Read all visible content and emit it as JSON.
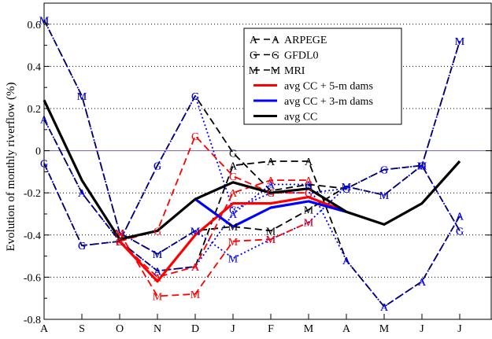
{
  "chart_data": {
    "type": "line",
    "title": "",
    "xlabel": "",
    "ylabel": "Evolution of monthly riverflow (%)",
    "categories": [
      "A",
      "S",
      "O",
      "N",
      "D",
      "J",
      "F",
      "M",
      "A",
      "M",
      "J",
      "J"
    ],
    "ylim": [
      -0.8,
      0.7
    ],
    "yticks": [
      -0.8,
      -0.6,
      -0.4,
      -0.2,
      0,
      0.2,
      0.4,
      0.6
    ],
    "ytick_labels": [
      "-0.8",
      "-0.6",
      "-0.4",
      "-0.2",
      "0",
      "0.2",
      "0.4",
      "0.6"
    ],
    "grid": "dotted-y",
    "zero_line_color": "#7a5ea8",
    "legend_position": "top-center",
    "legend": [
      {
        "label": "ARPEGE",
        "symbol": "A",
        "color": "#000000",
        "style": "dashed"
      },
      {
        "label": "GFDL0",
        "symbol": "G",
        "color": "#000000",
        "style": "dashed"
      },
      {
        "label": "MRI",
        "symbol": "M",
        "color": "#000000",
        "style": "dashed"
      },
      {
        "label": "avg CC + 5-m dams",
        "color": "#ff0000",
        "style": "solid"
      },
      {
        "label": "avg CC + 3-m dams",
        "color": "#0000ff",
        "style": "solid"
      },
      {
        "label": "avg CC",
        "color": "#000000",
        "style": "solid"
      }
    ],
    "series": [
      {
        "symbol": "A",
        "color": "#000000",
        "style": "dashed",
        "values": [
          0.15,
          -0.2,
          -0.43,
          -0.57,
          -0.55,
          -0.07,
          -0.05,
          -0.05,
          -0.52,
          -0.74,
          -0.62,
          -0.31
        ]
      },
      {
        "symbol": "G",
        "color": "#000000",
        "style": "dashed",
        "values": [
          -0.06,
          -0.45,
          -0.43,
          -0.07,
          0.26,
          -0.01,
          -0.19,
          -0.16,
          -0.18,
          -0.09,
          -0.07,
          -0.38
        ]
      },
      {
        "symbol": "M",
        "color": "#000000",
        "style": "dashed",
        "values": [
          0.62,
          0.26,
          -0.39,
          -0.49,
          -0.38,
          -0.36,
          -0.38,
          -0.28,
          -0.17,
          -0.21,
          -0.07,
          0.52
        ]
      },
      {
        "symbol": "A",
        "color": "#0000ff",
        "style": "dotted",
        "values": [
          0.15,
          -0.2,
          -0.43,
          -0.57,
          -0.55,
          -0.3,
          -0.16,
          -0.16,
          -0.52,
          -0.74,
          -0.62,
          -0.31
        ]
      },
      {
        "symbol": "G",
        "color": "#0000ff",
        "style": "dotted",
        "values": [
          -0.06,
          -0.45,
          -0.43,
          -0.07,
          0.26,
          -0.28,
          -0.2,
          -0.2,
          -0.18,
          -0.09,
          -0.07,
          -0.38
        ]
      },
      {
        "symbol": "M",
        "color": "#0000ff",
        "style": "dotted",
        "values": [
          0.62,
          0.26,
          -0.39,
          -0.49,
          -0.38,
          -0.51,
          -0.42,
          -0.34,
          -0.17,
          -0.21,
          -0.07,
          0.52
        ]
      },
      {
        "symbol": "A",
        "color": "#ff0000",
        "style": "dashed",
        "start": 2,
        "end": 7,
        "values": [
          null,
          null,
          -0.43,
          -0.6,
          -0.55,
          -0.2,
          -0.14,
          -0.14,
          null,
          null,
          null,
          null
        ]
      },
      {
        "symbol": "G",
        "color": "#ff0000",
        "style": "dashed",
        "start": 2,
        "end": 7,
        "values": [
          null,
          null,
          -0.43,
          -0.38,
          0.07,
          -0.12,
          -0.2,
          -0.2,
          null,
          null,
          null,
          null
        ]
      },
      {
        "symbol": "M",
        "color": "#ff0000",
        "style": "dashed",
        "start": 2,
        "end": 7,
        "values": [
          null,
          null,
          -0.39,
          -0.69,
          -0.68,
          -0.43,
          -0.42,
          -0.34,
          null,
          null,
          null,
          null
        ]
      },
      {
        "name": "avg CC + 5-m dams",
        "color": "#ff0000",
        "style": "solid",
        "width": 3.2,
        "start": 2,
        "end": 8,
        "values": [
          null,
          null,
          -0.43,
          -0.62,
          -0.4,
          -0.25,
          -0.25,
          -0.22,
          -0.29,
          null,
          null,
          null
        ]
      },
      {
        "name": "avg CC + 3-m dams",
        "color": "#0000ff",
        "style": "solid",
        "width": 3.2,
        "start": 4,
        "end": 8,
        "values": [
          null,
          null,
          null,
          null,
          -0.23,
          -0.36,
          -0.27,
          -0.24,
          -0.29,
          null,
          null,
          null
        ]
      },
      {
        "name": "avg CC",
        "color": "#000000",
        "style": "solid",
        "width": 3.2,
        "values": [
          0.24,
          -0.14,
          -0.42,
          -0.38,
          -0.23,
          -0.15,
          -0.2,
          -0.18,
          -0.29,
          -0.35,
          -0.25,
          -0.05
        ]
      }
    ]
  }
}
